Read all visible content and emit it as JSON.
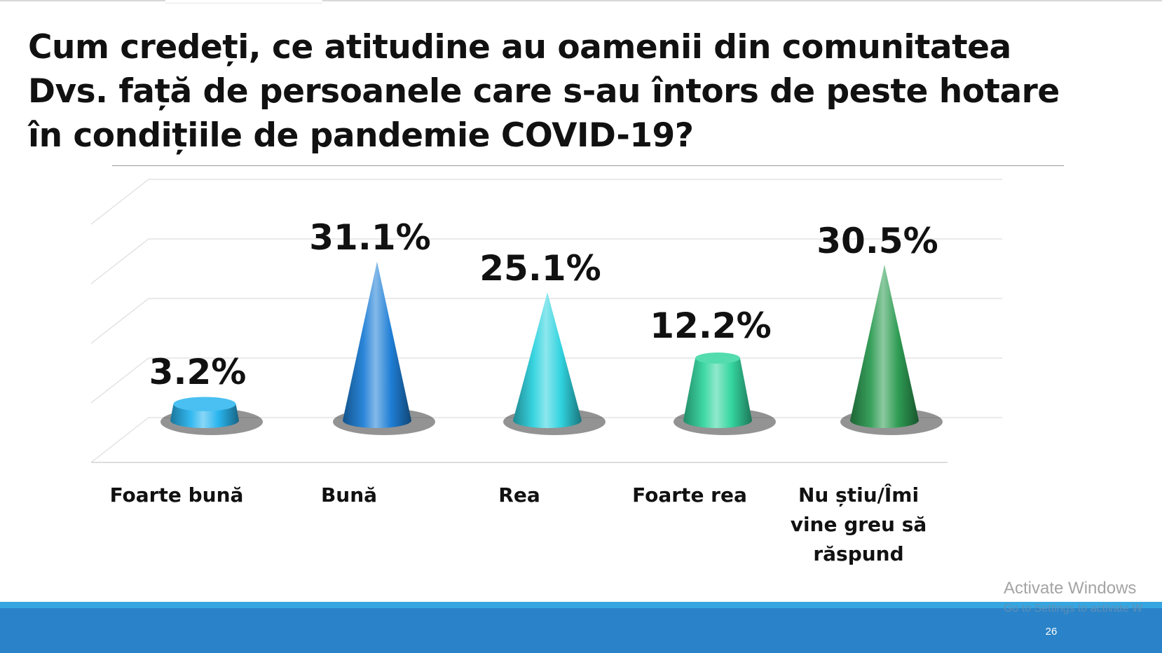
{
  "slide": {
    "title": "Cum credeți, ce atitudine au oamenii din comunitatea Dvs. față de persoanele care s-au întors de peste hotare în condițiile de pandemie COVID-19?",
    "page_number": "26"
  },
  "watermark": {
    "line1": "Activate Windows",
    "line2": "Go to Settings to activate W"
  },
  "chart_data": {
    "type": "bar",
    "style": "3d-cone",
    "categories": [
      "Foarte bună",
      "Bună",
      "Rea",
      "Foarte rea",
      "Nu știu/Îmi vine greu să răspund"
    ],
    "values": [
      3.2,
      31.1,
      25.1,
      12.2,
      30.5
    ],
    "value_labels": [
      "3.2%",
      "31.1%",
      "25.1%",
      "12.2%",
      "30.5%"
    ],
    "unit": "%",
    "ylim": [
      0,
      35
    ],
    "grid": true,
    "legend": "none",
    "colors": [
      "#29b5ef",
      "#1f7fd6",
      "#2fd3df",
      "#35d6a0",
      "#2e9c53"
    ]
  }
}
